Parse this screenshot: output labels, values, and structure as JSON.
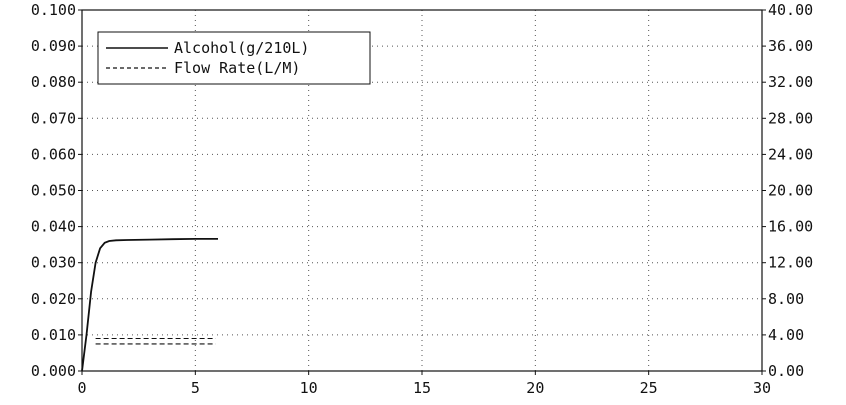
{
  "chart_data": {
    "type": "line",
    "title": "",
    "xlabel": "",
    "ylabel": "",
    "xlim": [
      0,
      30
    ],
    "ylim_left": [
      0,
      0.1
    ],
    "ylim_right": [
      0,
      40
    ],
    "grid": true,
    "legend_position": "top-left",
    "x_ticks": [
      "0",
      "5",
      "10",
      "15",
      "20",
      "25",
      "30"
    ],
    "y_left_ticks": [
      "0.000",
      "0.010",
      "0.020",
      "0.030",
      "0.040",
      "0.050",
      "0.060",
      "0.070",
      "0.080",
      "0.090",
      "0.100"
    ],
    "y_right_ticks": [
      "0.00",
      "4.00",
      "8.00",
      "12.00",
      "16.00",
      "20.00",
      "24.00",
      "28.00",
      "32.00",
      "36.00",
      "40.00"
    ],
    "series": [
      {
        "name": "Alcohol(g/210L)",
        "axis": "left",
        "style": "solid",
        "color": "#111111",
        "x": [
          0.0,
          0.2,
          0.4,
          0.6,
          0.8,
          1.0,
          1.2,
          1.5,
          2.0,
          3.0,
          4.0,
          5.0,
          6.0
        ],
        "y": [
          0.0,
          0.01,
          0.022,
          0.03,
          0.034,
          0.0355,
          0.036,
          0.0362,
          0.0363,
          0.0364,
          0.0365,
          0.0366,
          0.0366
        ]
      },
      {
        "name": "Flow Rate(L/M)",
        "axis": "right",
        "style": "dashed",
        "color": "#111111",
        "x": [
          0.6,
          5.9
        ],
        "y": [
          3.0,
          3.0
        ]
      },
      {
        "name": "Flow Rate(L/M)",
        "axis": "right",
        "style": "dashed",
        "color": "#111111",
        "x": [
          0.6,
          5.9
        ],
        "y": [
          3.6,
          3.6
        ]
      }
    ]
  }
}
